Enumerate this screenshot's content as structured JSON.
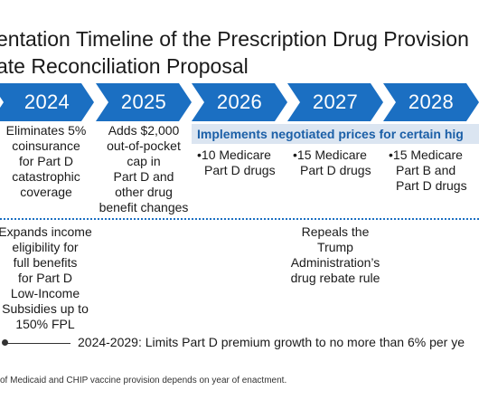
{
  "title": {
    "line1": "entation Timeline of the Prescription Drug Provision",
    "line2": "ate Reconciliation Proposal"
  },
  "years": [
    "2024",
    "2025",
    "2026",
    "2027",
    "2028"
  ],
  "colors": {
    "chevron": "#1b6fc2",
    "banner_bg": "#dbe5f1",
    "banner_text": "#1b5fa7"
  },
  "col2024": {
    "top": [
      "Eliminates 5%",
      "coinsurance",
      "for Part D",
      "catastrophic",
      "coverage"
    ],
    "bottom": [
      "Expands income",
      "eligibility for",
      "full benefits",
      "for Part D",
      "Low-Income",
      "Subsidies up to",
      "150% FPL"
    ]
  },
  "col2025": {
    "top": [
      "Adds $2,000",
      "out-of-pocket",
      "cap in",
      "Part D and",
      "other drug",
      "benefit changes"
    ]
  },
  "banner": "Implements negotiated prices for certain hig",
  "col2026": {
    "bullet": [
      "•10 Medicare",
      "Part D drugs"
    ]
  },
  "col2027": {
    "bullet": [
      "•15 Medicare",
      "Part D drugs"
    ],
    "bottom": [
      "Repeals the",
      "Trump",
      "Administration’s",
      "drug rebate rule"
    ]
  },
  "col2028": {
    "bullet": [
      "•15 Medicare",
      "Part B and",
      "Part D drugs"
    ]
  },
  "premium_text": "2024-2029: Limits Part D premium growth to no more than 6% per ye",
  "footnote": "of Medicaid and CHIP vaccine provision depends on year of enactment."
}
